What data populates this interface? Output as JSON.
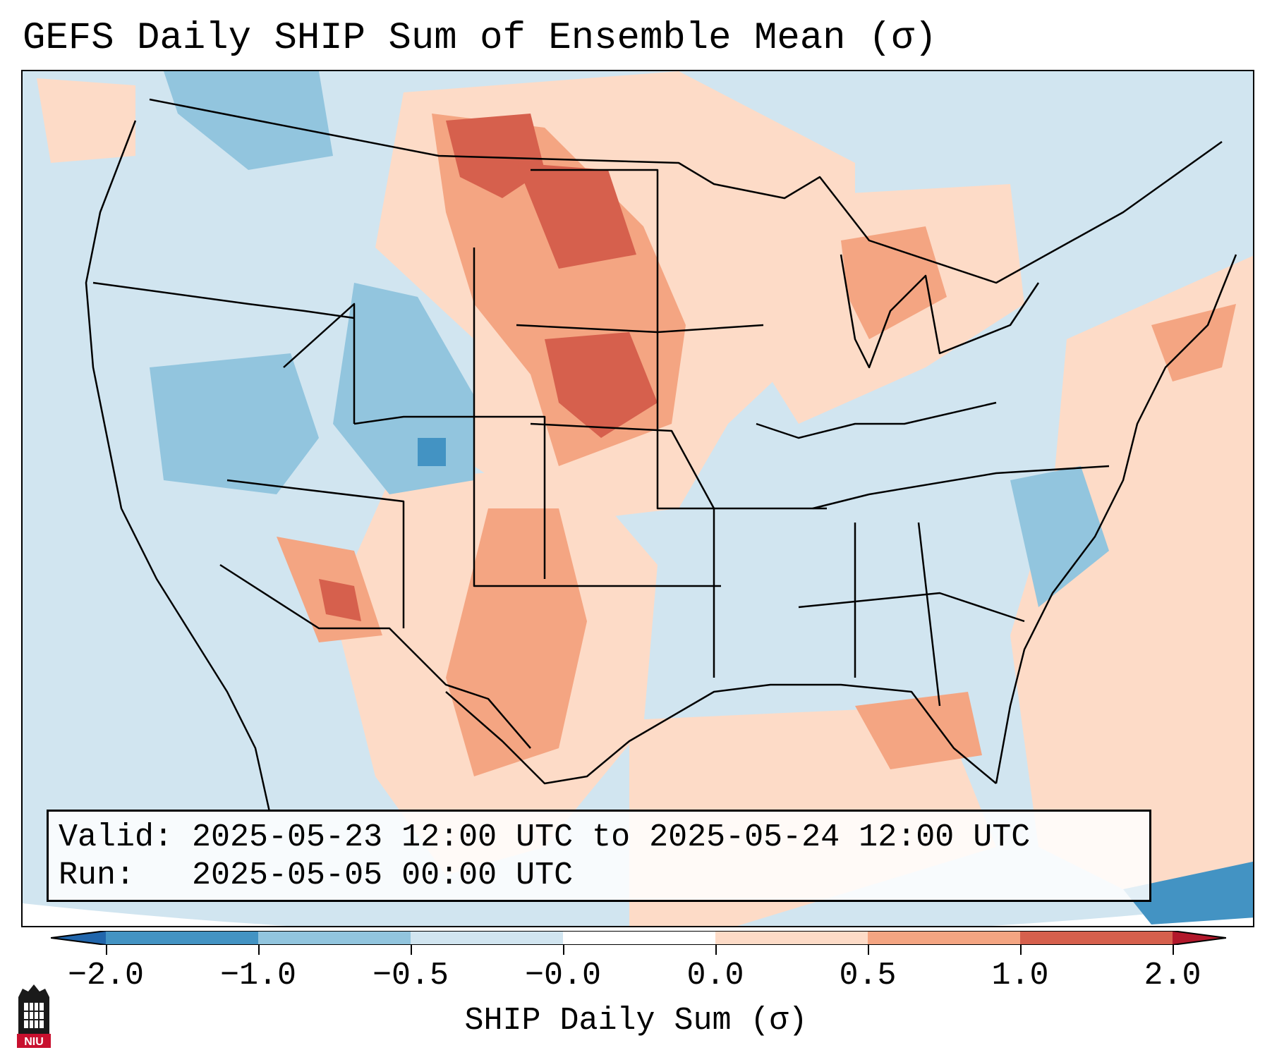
{
  "title": "GEFS Daily SHIP Sum of Ensemble Mean (σ)",
  "info": {
    "valid_line": "Valid: 2025-05-23 12:00 UTC to 2025-05-24 12:00 UTC",
    "run_line": "Run:   2025-05-05 00:00 UTC"
  },
  "colorbar": {
    "title": "SHIP Daily Sum (σ)",
    "tick_labels": [
      "−2.0",
      "−1.0",
      "−0.5",
      "−0.0",
      "0.0",
      "0.5",
      "1.0",
      "2.0"
    ],
    "colors": [
      "#2166ac",
      "#4393c3",
      "#92c5de",
      "#d1e5f0",
      "#ffffff",
      "#fddbc7",
      "#f4a582",
      "#d6604d",
      "#b2182b"
    ]
  },
  "map": {
    "background_color": "#d1e5f0",
    "region": "Contiguous United States",
    "projection": "Lambert conformal"
  },
  "logo": {
    "text": "NIU",
    "color": "#c8102e"
  }
}
